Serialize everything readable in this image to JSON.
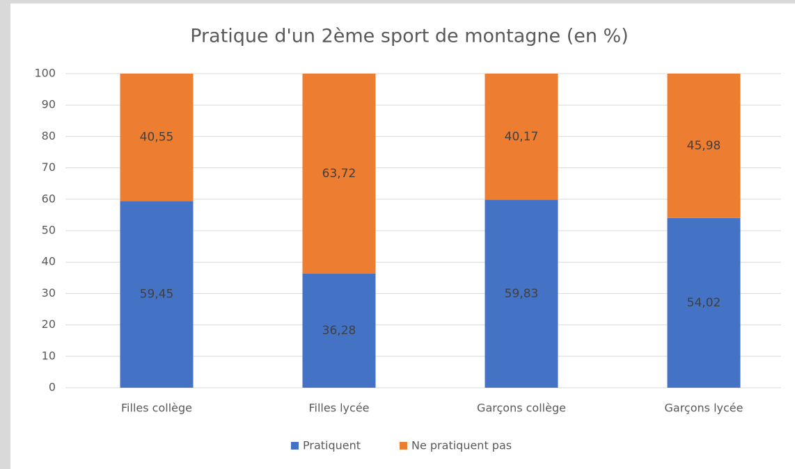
{
  "chart_data": {
    "type": "stacked_bar",
    "title": "Pratique d'un 2ème sport de montagne (en %)",
    "categories": [
      "Filles collège",
      "Filles lycée",
      "Garçons collège",
      "Garçons lycée"
    ],
    "series": [
      {
        "name": "Pratiquent",
        "color": "#4472c4",
        "values": [
          59.45,
          36.28,
          59.83,
          54.02
        ],
        "value_labels": [
          "59,45",
          "36,28",
          "59,83",
          "54,02"
        ]
      },
      {
        "name": "Ne pratiquent pas",
        "color": "#ed7d31",
        "values": [
          40.55,
          63.72,
          40.17,
          45.98
        ],
        "value_labels": [
          "40,55",
          "63,72",
          "40,17",
          "45,98"
        ]
      }
    ],
    "ylim": [
      0,
      100
    ],
    "yticks": [
      0,
      10,
      20,
      30,
      40,
      50,
      60,
      70,
      80,
      90,
      100
    ],
    "grid": true,
    "legend": "bottom"
  }
}
